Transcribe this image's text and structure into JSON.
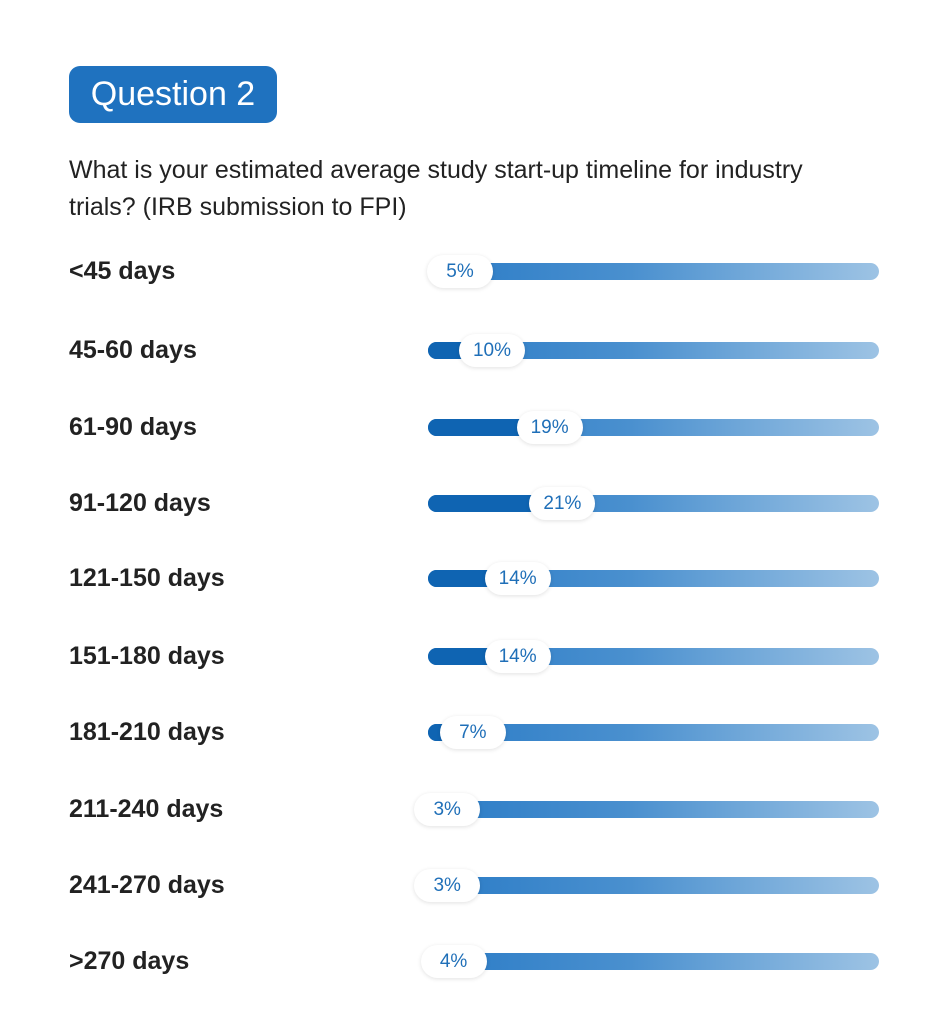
{
  "badge": "Question 2",
  "question": "What is your estimated average study start-up timeline for industry trials? (IRB submission to FPI)",
  "colors": {
    "accent": "#1f72bf",
    "bar_dark": "#0f64b2",
    "bar_light": "#9dc3e4",
    "label_text": "#1f6fb8"
  },
  "chart_data": {
    "type": "bar",
    "orientation": "horizontal",
    "categories": [
      "<45 days",
      "45-60 days",
      "61-90 days",
      "91-120 days",
      "121-150 days",
      "151-180 days",
      "181-210 days",
      "211-240 days",
      "241-270 days",
      ">270 days"
    ],
    "values": [
      5,
      10,
      19,
      21,
      14,
      14,
      7,
      3,
      3,
      4
    ],
    "value_labels": [
      "5%",
      "10%",
      "19%",
      "21%",
      "14%",
      "14%",
      "7%",
      "3%",
      "3%",
      "4%"
    ],
    "unit": "%",
    "xlim": [
      0,
      100
    ],
    "grid": false,
    "legend": "none"
  }
}
